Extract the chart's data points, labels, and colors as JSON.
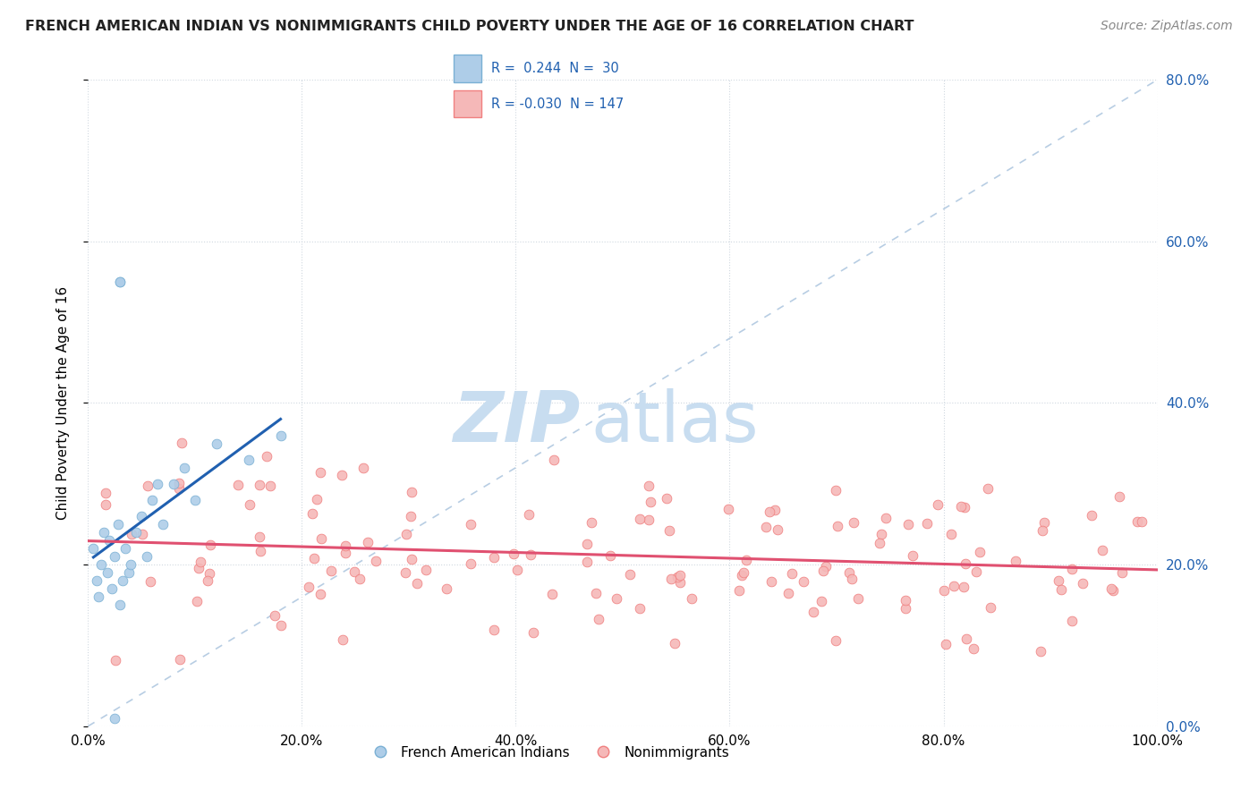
{
  "title": "FRENCH AMERICAN INDIAN VS NONIMMIGRANTS CHILD POVERTY UNDER THE AGE OF 16 CORRELATION CHART",
  "source": "Source: ZipAtlas.com",
  "ylabel": "Child Poverty Under the Age of 16",
  "xlim": [
    0,
    1.0
  ],
  "ylim": [
    0,
    0.8
  ],
  "xticks": [
    0.0,
    0.2,
    0.4,
    0.6,
    0.8,
    1.0
  ],
  "yticks": [
    0.0,
    0.2,
    0.4,
    0.6,
    0.8
  ],
  "ytick_labels_right": [
    "0.0%",
    "20.0%",
    "40.0%",
    "60.0%",
    "80.0%"
  ],
  "xtick_labels": [
    "0.0%",
    "20.0%",
    "40.0%",
    "60.0%",
    "80.0%",
    "100.0%"
  ],
  "blue_color": "#7ab0d4",
  "blue_fill": "#aecde8",
  "pink_color": "#f08080",
  "pink_fill": "#f5b8b8",
  "line_blue": "#2060b0",
  "line_pink": "#e05070",
  "line_diag_color": "#b0c8e0",
  "watermark_zip": "ZIP",
  "watermark_atlas": "atlas",
  "watermark_color": "#c8ddf0",
  "blue_n": 30,
  "pink_n": 147,
  "blue_R": 0.244,
  "pink_R": -0.03,
  "background": "#ffffff",
  "grid_color": "#d0d8e0",
  "title_color": "#222222",
  "source_color": "#888888",
  "label_color": "#2060b0"
}
